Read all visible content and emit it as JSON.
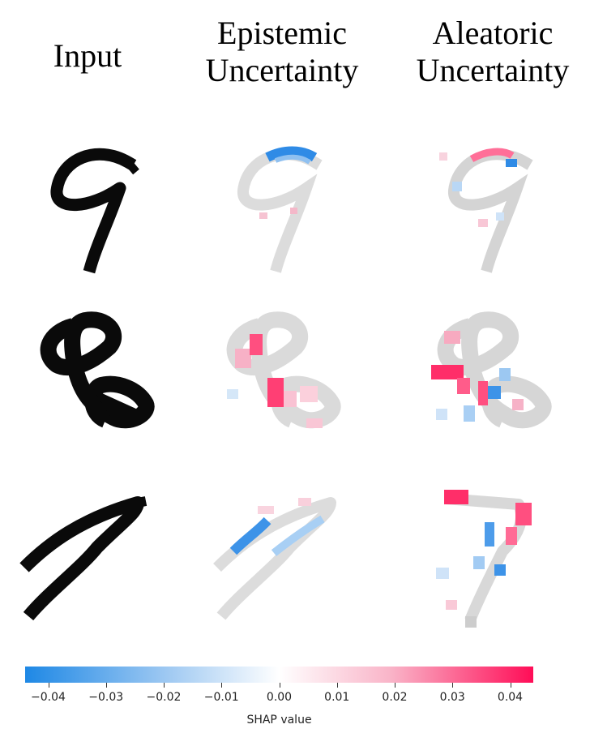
{
  "headers": {
    "input": "Input",
    "epistemic_1": "Epistemic",
    "epistemic_2": "Uncertainty",
    "aleatoric_1": "Aleatoric",
    "aleatoric_2": "Uncertainty"
  },
  "rows": [
    {
      "digit": "9",
      "digit_icon": "digit-nine-glyph"
    },
    {
      "digit": "8",
      "digit_icon": "digit-eight-glyph"
    },
    {
      "digit": "7",
      "digit_icon": "digit-seven-glyph"
    }
  ],
  "colorbar": {
    "label": "SHAP value",
    "ticks": [
      "−0.04",
      "−0.03",
      "−0.02",
      "−0.01",
      "0.00",
      "0.01",
      "0.02",
      "0.03",
      "0.04"
    ],
    "min": -0.044,
    "max": 0.044,
    "tick_values": [
      -0.04,
      -0.03,
      -0.02,
      -0.01,
      0.0,
      0.01,
      0.02,
      0.03,
      0.04
    ],
    "colors": {
      "negative": "#1e88e5",
      "zero": "#ffffff",
      "positive": "#ff0d57",
      "gray": "#d8d8d8",
      "ink": "#0a0a0a"
    }
  }
}
